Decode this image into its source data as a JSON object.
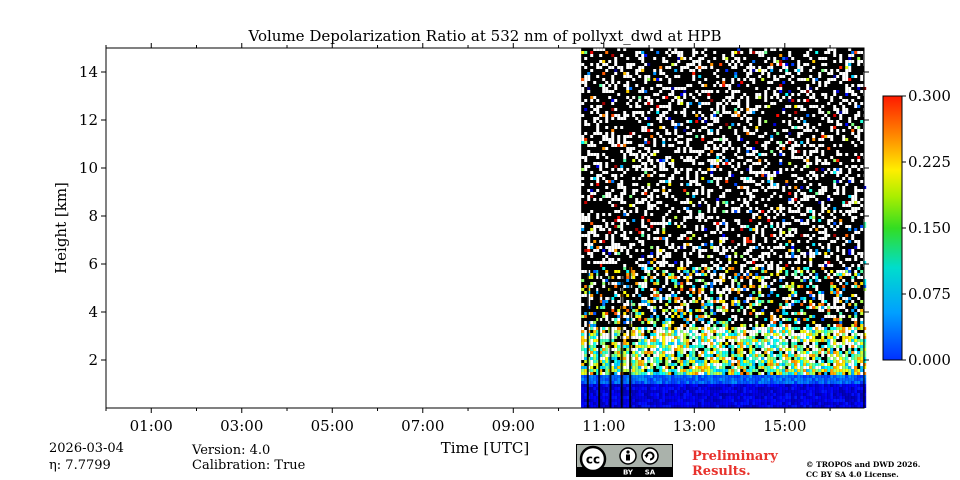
{
  "chart_data": {
    "type": "heatmap",
    "title": "Volume Depolarization Ratio at 532 nm of pollyxt_dwd at HPB",
    "xlabel": "Time [UTC]",
    "ylabel": "Height [km]",
    "x_range_hours": [
      0,
      16.75
    ],
    "xticks": [
      1,
      3,
      5,
      7,
      9,
      11,
      13,
      15
    ],
    "xtick_labels": [
      "01:00",
      "03:00",
      "05:00",
      "07:00",
      "09:00",
      "11:00",
      "13:00",
      "15:00"
    ],
    "ylim": [
      0,
      15
    ],
    "yticks": [
      2,
      4,
      6,
      8,
      10,
      12,
      14
    ],
    "ytick_labels": [
      "2",
      "4",
      "6",
      "8",
      "10",
      "12",
      "14"
    ],
    "data_start_hour": 10.5,
    "data_end_hour": 16.75,
    "colorbar": {
      "range": [
        0.0,
        0.3
      ],
      "ticks": [
        0.0,
        0.075,
        0.15,
        0.225,
        0.3
      ],
      "tick_labels": [
        "0.000",
        "0.075",
        "0.150",
        "0.225",
        "0.300"
      ],
      "colormap": "jet"
    },
    "features": [
      {
        "description": "low depolarization boundary layer",
        "height_km": [
          0,
          1.5
        ],
        "value": 0.02
      },
      {
        "description": "elevated aerosol layer",
        "height_km": [
          1.5,
          3.5
        ],
        "value": 0.12
      },
      {
        "description": "noisy upper region",
        "height_km": [
          3.5,
          15
        ]
      }
    ]
  },
  "footer": {
    "date": "2026-03-04",
    "eta": "η: 7.7799",
    "version": "Version: 4.0",
    "calibration": "Calibration: True",
    "preliminary_line1": "Preliminary",
    "preliminary_line2": "Results.",
    "copyright_line1": "© TROPOS and DWD 2026.",
    "copyright_line2": "CC BY SA 4.0 License.",
    "license_badge": {
      "cc": "cc",
      "by": "BY",
      "sa": "SA"
    }
  }
}
